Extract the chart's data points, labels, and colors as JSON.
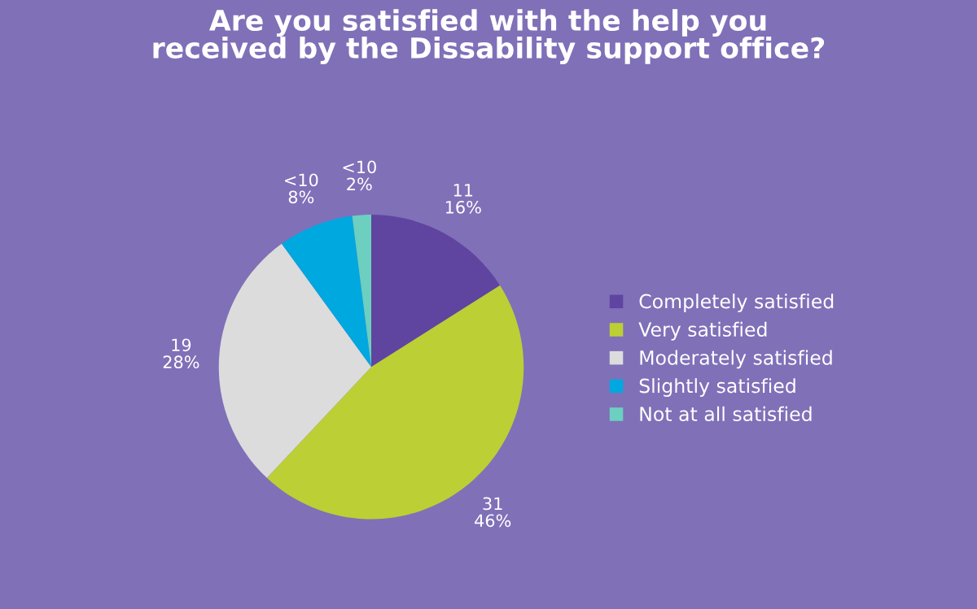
{
  "chart_data": {
    "type": "pie",
    "title": "Are you satisfied with the help you\nreceived by the Dissability support office?",
    "categories": [
      "Completely satisfied",
      "Very satisfied",
      "Moderately satisfied",
      "Slightly satisfied",
      "Not at all satisfied"
    ],
    "values": [
      16,
      46,
      28,
      8,
      2
    ],
    "value_labels": [
      "11\n16%",
      "31\n46%",
      "19\n28%",
      "<10\n8%",
      "<10\n2%"
    ],
    "colors": [
      "#5f45a0",
      "#bccf34",
      "#dcdcdc",
      "#00a8e0",
      "#6ccfbf"
    ],
    "legend": "right"
  }
}
